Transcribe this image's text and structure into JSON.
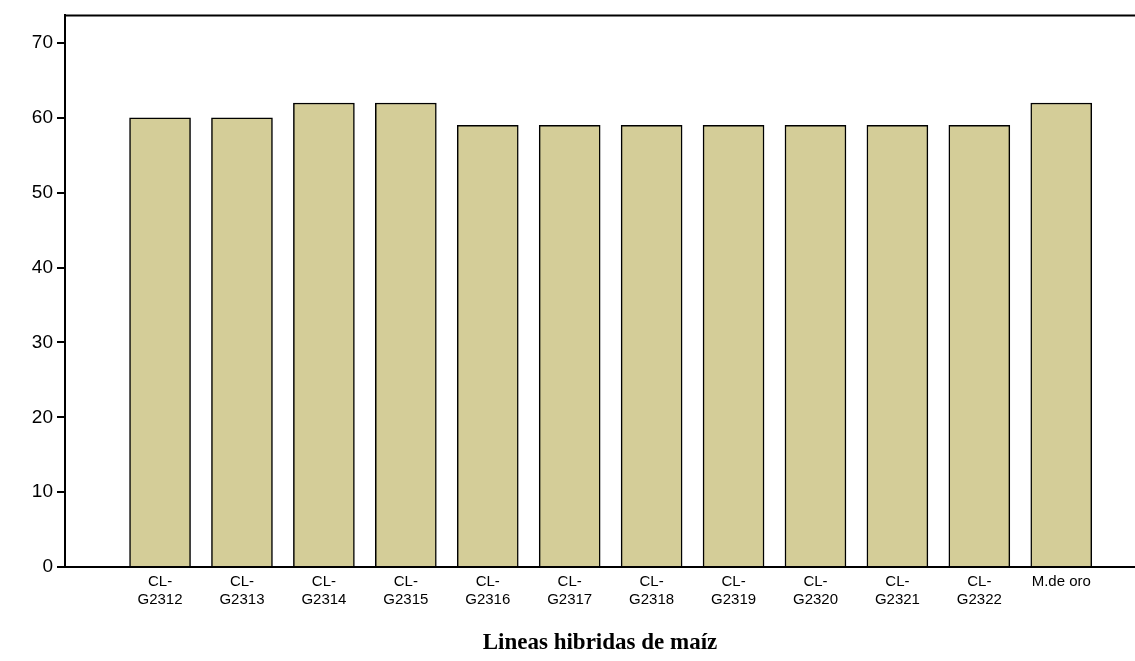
{
  "chart_data": {
    "type": "bar",
    "xlabel": "Lineas hibridas de maíz",
    "categories": [
      "CL-G2312",
      "CL-G2313",
      "CL-G2314",
      "CL-G2315",
      "CL-G2316",
      "CL-G2317",
      "CL-G2318",
      "CL-G2319",
      "CL-G2320",
      "CL-G2321",
      "CL-G2322",
      "M.de oro"
    ],
    "values": [
      60,
      60,
      62,
      62,
      59,
      59,
      59,
      59,
      59,
      59,
      59,
      62
    ],
    "color": "#d4cd98",
    "ylim": [
      0,
      73.7
    ],
    "yticks": [
      0,
      10,
      20,
      30,
      40,
      50,
      60,
      70
    ],
    "grid": false,
    "legend": false
  }
}
